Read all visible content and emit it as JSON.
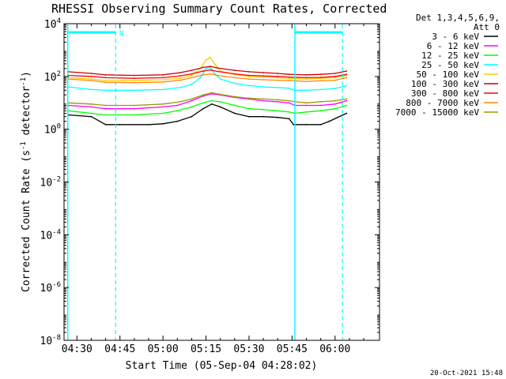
{
  "chart_data": {
    "type": "line",
    "title": "RHESSI Observing Summary Count Rates, Corrected",
    "xlabel": "Start Time (05-Sep-04 04:28:02)",
    "ylabel_main": "Corrected Count Rate (s",
    "ylabel_unit_sup1": "-1",
    "ylabel_mid": " detector",
    "ylabel_unit_sup2": "-1",
    "ylabel_end": ")",
    "yscale": "log",
    "ylim_exp": [
      -8,
      4
    ],
    "xlim_min": [
      25.5,
      135.5
    ],
    "x_ticks": [
      {
        "label": "04:30",
        "min": 30
      },
      {
        "label": "04:45",
        "min": 45
      },
      {
        "label": "05:00",
        "min": 60
      },
      {
        "label": "05:15",
        "min": 75
      },
      {
        "label": "05:30",
        "min": 90
      },
      {
        "label": "05:45",
        "min": 105
      },
      {
        "label": "06:00",
        "min": 120
      }
    ],
    "y_ticks": [
      {
        "base": "10",
        "exp": "4",
        "value_exp": 4
      },
      {
        "base": "10",
        "exp": "2",
        "value_exp": 2
      },
      {
        "base": "10",
        "exp": "0",
        "value_exp": 0
      },
      {
        "base": "10",
        "exp": "-2",
        "value_exp": -2
      },
      {
        "base": "10",
        "exp": "-4",
        "value_exp": -4
      },
      {
        "base": "10",
        "exp": "-6",
        "value_exp": -6
      },
      {
        "base": "10",
        "exp": "-8",
        "value_exp": -8
      }
    ],
    "legend_header": [
      "Det 1,3,4,5,6,9,",
      "Att 0"
    ],
    "series": [
      {
        "name": "3 - 6 keV",
        "color": "#000000",
        "values": [
          [
            27,
            3.5
          ],
          [
            35,
            3
          ],
          [
            40,
            1.5
          ],
          [
            45,
            1.5
          ],
          [
            55,
            1.5
          ],
          [
            60,
            1.6
          ],
          [
            65,
            2
          ],
          [
            70,
            3
          ],
          [
            74,
            6
          ],
          [
            77,
            9
          ],
          [
            80,
            7
          ],
          [
            85,
            4
          ],
          [
            90,
            3
          ],
          [
            95,
            3
          ],
          [
            100,
            2.8
          ],
          [
            104,
            2.5
          ],
          [
            105.5,
            1.5
          ],
          [
            110,
            1.5
          ],
          [
            115,
            1.5
          ],
          [
            118,
            2
          ],
          [
            124,
            4
          ]
        ]
      },
      {
        "name": "6 - 12 keV",
        "color": "#ff00ff",
        "values": [
          [
            27,
            8
          ],
          [
            35,
            7
          ],
          [
            40,
            6
          ],
          [
            50,
            6
          ],
          [
            60,
            7
          ],
          [
            65,
            8
          ],
          [
            70,
            12
          ],
          [
            74,
            18
          ],
          [
            77,
            22
          ],
          [
            80,
            20
          ],
          [
            85,
            16
          ],
          [
            90,
            14
          ],
          [
            95,
            12
          ],
          [
            100,
            11
          ],
          [
            104,
            10
          ],
          [
            106,
            8
          ],
          [
            110,
            8
          ],
          [
            115,
            8
          ],
          [
            120,
            9
          ],
          [
            124,
            12
          ]
        ]
      },
      {
        "name": "12 - 25 keV",
        "color": "#00ff00",
        "values": [
          [
            27,
            5
          ],
          [
            35,
            4
          ],
          [
            40,
            3.5
          ],
          [
            50,
            3.5
          ],
          [
            60,
            4
          ],
          [
            65,
            5
          ],
          [
            70,
            7
          ],
          [
            74,
            10
          ],
          [
            77,
            12
          ],
          [
            80,
            11
          ],
          [
            85,
            8
          ],
          [
            90,
            6
          ],
          [
            95,
            5.5
          ],
          [
            100,
            5
          ],
          [
            104,
            4.5
          ],
          [
            106,
            4
          ],
          [
            110,
            4.5
          ],
          [
            115,
            5
          ],
          [
            120,
            6
          ],
          [
            124,
            8
          ]
        ]
      },
      {
        "name": "25 - 50 keV",
        "color": "#00ffff",
        "values": [
          [
            27,
            40
          ],
          [
            35,
            32
          ],
          [
            40,
            30
          ],
          [
            50,
            30
          ],
          [
            60,
            32
          ],
          [
            66,
            38
          ],
          [
            70,
            50
          ],
          [
            73,
            90
          ],
          [
            75,
            200
          ],
          [
            76.5,
            220
          ],
          [
            78,
            130
          ],
          [
            80,
            80
          ],
          [
            85,
            55
          ],
          [
            90,
            45
          ],
          [
            95,
            40
          ],
          [
            100,
            38
          ],
          [
            104,
            36
          ],
          [
            106,
            30
          ],
          [
            110,
            30
          ],
          [
            115,
            32
          ],
          [
            120,
            35
          ],
          [
            124,
            45
          ]
        ]
      },
      {
        "name": "50 - 100 keV",
        "color": "#ffcc00",
        "values": [
          [
            27,
            90
          ],
          [
            35,
            80
          ],
          [
            40,
            70
          ],
          [
            50,
            70
          ],
          [
            60,
            75
          ],
          [
            66,
            85
          ],
          [
            70,
            110
          ],
          [
            73,
            200
          ],
          [
            75,
            420
          ],
          [
            76.5,
            520
          ],
          [
            78,
            300
          ],
          [
            80,
            160
          ],
          [
            85,
            120
          ],
          [
            90,
            100
          ],
          [
            95,
            95
          ],
          [
            100,
            90
          ],
          [
            104,
            85
          ],
          [
            110,
            80
          ],
          [
            115,
            85
          ],
          [
            120,
            90
          ],
          [
            124,
            110
          ]
        ]
      },
      {
        "name": "100 - 300 keV",
        "color": "#cc0000",
        "values": [
          [
            27,
            150
          ],
          [
            35,
            130
          ],
          [
            40,
            115
          ],
          [
            50,
            110
          ],
          [
            60,
            115
          ],
          [
            66,
            140
          ],
          [
            70,
            170
          ],
          [
            74,
            220
          ],
          [
            76.5,
            240
          ],
          [
            79,
            210
          ],
          [
            85,
            170
          ],
          [
            90,
            150
          ],
          [
            95,
            140
          ],
          [
            100,
            130
          ],
          [
            104,
            120
          ],
          [
            110,
            115
          ],
          [
            115,
            120
          ],
          [
            120,
            130
          ],
          [
            124,
            160
          ]
        ]
      },
      {
        "name": "300 - 800 keV",
        "color": "#ff0000",
        "values": [
          [
            27,
            110
          ],
          [
            35,
            100
          ],
          [
            40,
            90
          ],
          [
            50,
            85
          ],
          [
            60,
            90
          ],
          [
            66,
            105
          ],
          [
            70,
            125
          ],
          [
            74,
            160
          ],
          [
            76.5,
            175
          ],
          [
            79,
            155
          ],
          [
            85,
            125
          ],
          [
            90,
            110
          ],
          [
            95,
            105
          ],
          [
            100,
            100
          ],
          [
            104,
            95
          ],
          [
            110,
            90
          ],
          [
            115,
            92
          ],
          [
            120,
            100
          ],
          [
            124,
            120
          ]
        ]
      },
      {
        "name": "800 - 7000 keV",
        "color": "#ff8800",
        "values": [
          [
            27,
            80
          ],
          [
            35,
            70
          ],
          [
            40,
            60
          ],
          [
            50,
            58
          ],
          [
            60,
            62
          ],
          [
            66,
            72
          ],
          [
            70,
            90
          ],
          [
            74,
            115
          ],
          [
            76.5,
            125
          ],
          [
            79,
            110
          ],
          [
            85,
            90
          ],
          [
            90,
            80
          ],
          [
            95,
            75
          ],
          [
            100,
            72
          ],
          [
            104,
            70
          ],
          [
            110,
            65
          ],
          [
            115,
            68
          ],
          [
            120,
            72
          ],
          [
            124,
            90
          ]
        ]
      },
      {
        "name": "7000 - 15000 keV",
        "color": "#999900",
        "values": [
          [
            27,
            10
          ],
          [
            35,
            9
          ],
          [
            40,
            8
          ],
          [
            50,
            8
          ],
          [
            60,
            9
          ],
          [
            66,
            11
          ],
          [
            70,
            14
          ],
          [
            74,
            20
          ],
          [
            77,
            24
          ],
          [
            80,
            21
          ],
          [
            85,
            17
          ],
          [
            90,
            15
          ],
          [
            95,
            14
          ],
          [
            100,
            13
          ],
          [
            104,
            12
          ],
          [
            106,
            11
          ],
          [
            110,
            10
          ],
          [
            115,
            11
          ],
          [
            120,
            12
          ],
          [
            124,
            14
          ]
        ]
      }
    ],
    "legend_items": [
      {
        "label": "3 - 6 keV",
        "color": "#000000"
      },
      {
        "label": "6 - 12 keV",
        "color": "#ff00ff"
      },
      {
        "label": "12 - 25 keV",
        "color": "#00ff00"
      },
      {
        "label": "25 - 50 keV",
        "color": "#00ffff"
      },
      {
        "label": "50 - 100 keV",
        "color": "#ffcc00"
      },
      {
        "label": "100 - 300 keV",
        "color": "#cc0000"
      },
      {
        "label": "300 - 800 keV",
        "color": "#ff0000"
      },
      {
        "label": "800 - 7000 keV",
        "color": "#ff8800"
      },
      {
        "label": "7000 - 15000 keV",
        "color": "#999900"
      }
    ],
    "markers": {
      "solid_lines_min": [
        26.8,
        106
      ],
      "dashed_lines_min": [
        43.5,
        122.6
      ],
      "top_bars": [
        [
          26.8,
          43.5
        ],
        [
          106,
          122.6
        ]
      ],
      "n_label": "N",
      "n_label_min": 44.8,
      "marker_color": "#00ffff"
    },
    "timestamp": "20-Oct-2021 15:48"
  }
}
